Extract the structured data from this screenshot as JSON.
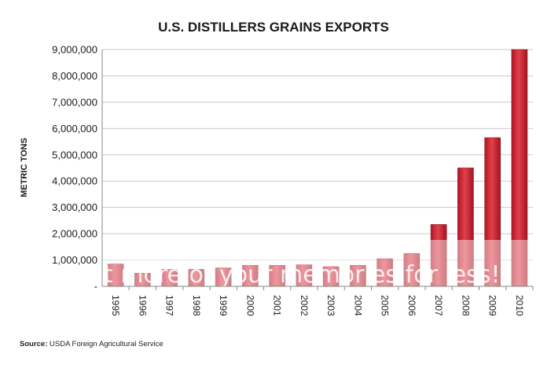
{
  "chart_data": {
    "type": "bar",
    "title": "U.S. DISTILLERS GRAINS EXPORTS",
    "ylabel": "METRIC TONS",
    "xlabel": "",
    "categories": [
      "1995",
      "1996",
      "1997",
      "1998",
      "1999",
      "2000",
      "2001",
      "2002",
      "2003",
      "2004",
      "2005",
      "2006",
      "2007",
      "2008",
      "2009",
      "2010"
    ],
    "values": [
      850000,
      500000,
      650000,
      650000,
      700000,
      800000,
      800000,
      820000,
      750000,
      800000,
      1050000,
      1250000,
      2350000,
      4500000,
      5650000,
      9000000
    ],
    "ylim": [
      0,
      9000000
    ],
    "yticks": [
      "-",
      "1,000,000",
      "2,000,000",
      "3,000,000",
      "4,000,000",
      "5,000,000",
      "6,000,000",
      "7,000,000",
      "8,000,000",
      "9,000,000"
    ],
    "bar_color": "#c8202e",
    "grid": true,
    "legend": "none"
  },
  "overlay_text": "t more of your memories for less!",
  "source": {
    "label": "Source:",
    "text": "USDA Foreign Agricultural Service"
  }
}
